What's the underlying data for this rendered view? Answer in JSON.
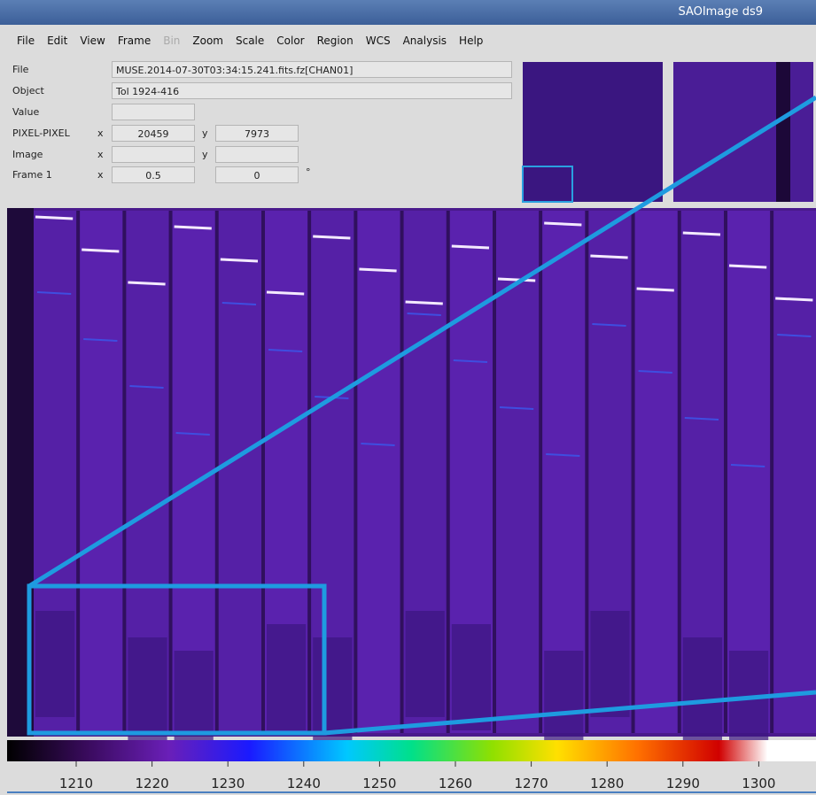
{
  "window": {
    "title": "SAOImage ds9"
  },
  "menu": [
    "File",
    "Edit",
    "View",
    "Frame",
    "Bin",
    "Zoom",
    "Scale",
    "Color",
    "Region",
    "WCS",
    "Analysis",
    "Help"
  ],
  "info": {
    "file": {
      "label": "File",
      "value": "MUSE.2014-07-30T03:34:15.241.fits.fz[CHAN01]"
    },
    "object": {
      "label": "Object",
      "value": "Tol 1924-416"
    },
    "value": {
      "label": "Value"
    },
    "pixel": {
      "label": "PIXEL-PIXEL",
      "x_label": "x",
      "x": "20459",
      "y_label": "y",
      "y": "7973"
    },
    "image": {
      "label": "Image",
      "x_label": "x",
      "y_label": "y"
    },
    "frame": {
      "label": "Frame 1",
      "x_label": "x",
      "x": "0.5",
      "y": "0",
      "unit": "°"
    }
  },
  "colorbar": {
    "ticks": [
      "1210",
      "1220",
      "1230",
      "1240",
      "1250",
      "1260",
      "1270",
      "1280",
      "1290",
      "1300"
    ]
  }
}
